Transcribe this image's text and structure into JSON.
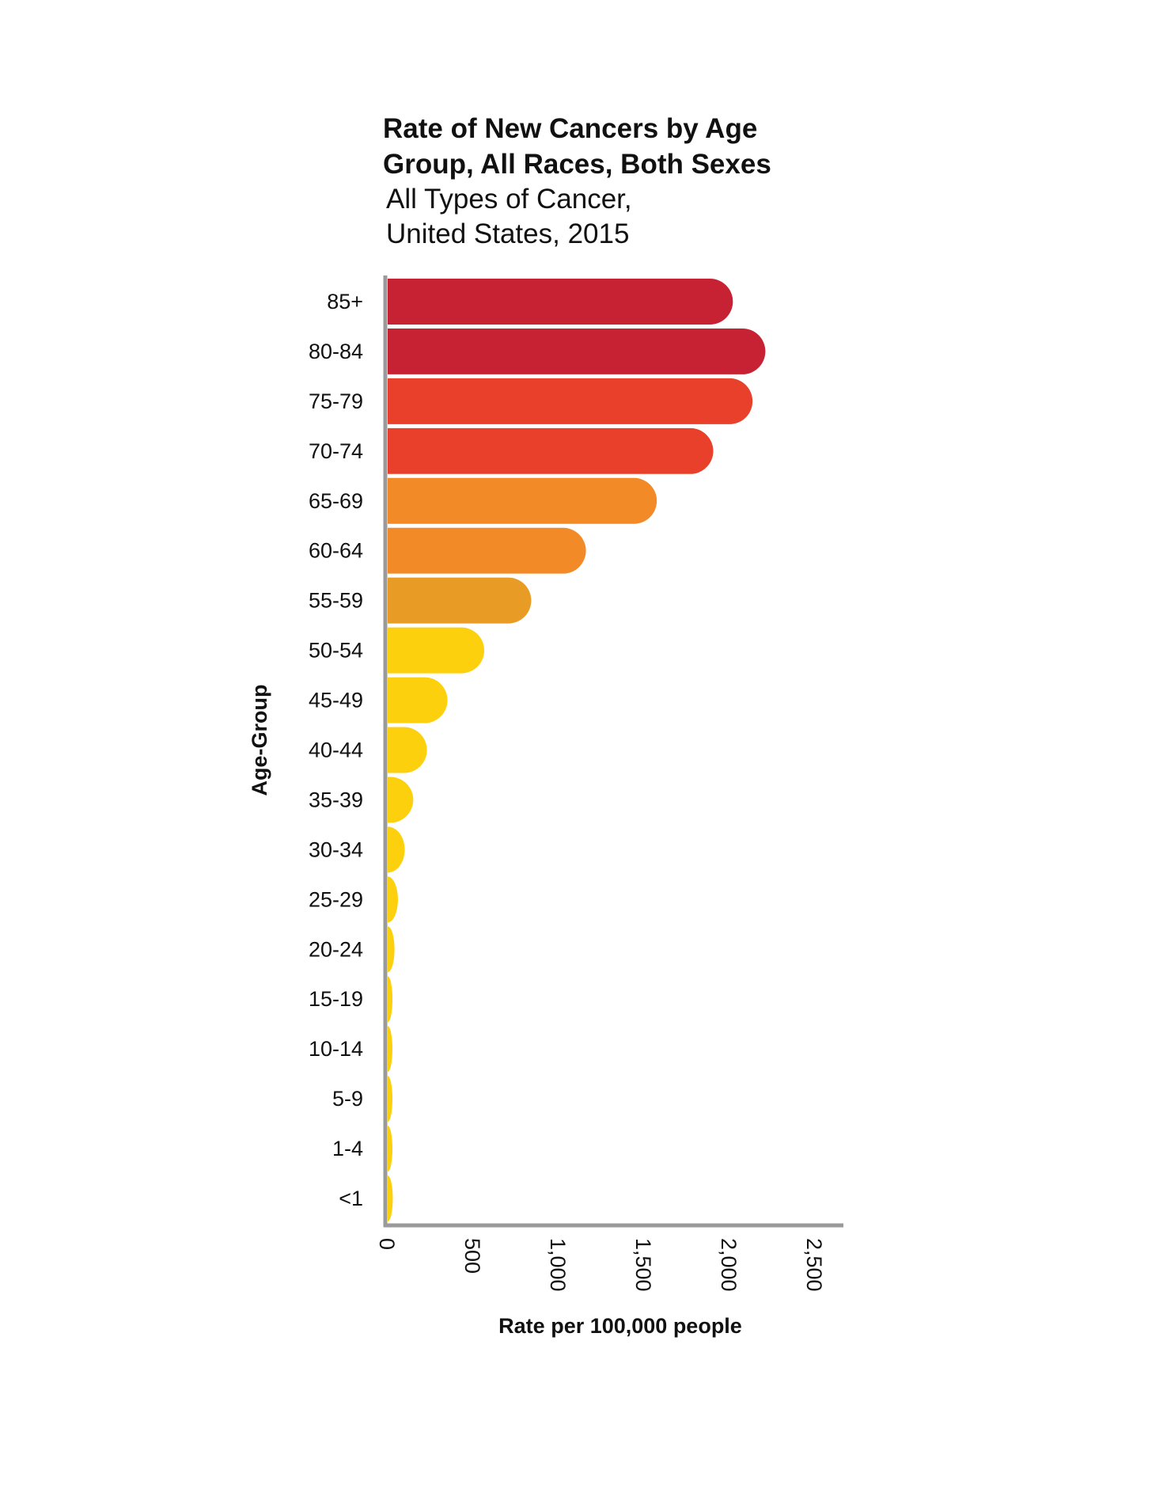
{
  "chart_data": {
    "type": "bar",
    "orientation": "horizontal",
    "title": "Rate of New Cancers by Age Group, All Races, Both Sexes",
    "title_lines": [
      "Rate of New Cancers by Age",
      "Group, All Races, Both Sexes"
    ],
    "subtitle_lines": [
      "All Types of Cancer,",
      "United States, 2015"
    ],
    "xlabel": "Rate per 100,000 people",
    "ylabel": "Age-Group",
    "xlim": [
      0,
      2700
    ],
    "xticks": [
      0,
      500,
      1000,
      1500,
      2000,
      2500
    ],
    "xtick_labels": [
      "0",
      "500",
      "1,000",
      "1,500",
      "2,000",
      "2,500"
    ],
    "grid": false,
    "categories": [
      "85+",
      "80-84",
      "75-79",
      "70-74",
      "65-69",
      "60-64",
      "55-59",
      "50-54",
      "45-49",
      "40-44",
      "35-39",
      "30-34",
      "25-29",
      "20-24",
      "15-19",
      "10-14",
      "5-9",
      "1-4",
      "<1"
    ],
    "values": [
      2020,
      2210,
      2135,
      1905,
      1575,
      1160,
      840,
      565,
      350,
      230,
      150,
      100,
      60,
      40,
      28,
      20,
      20,
      20,
      30
    ],
    "colors": [
      "#c62233",
      "#c62233",
      "#e8402a",
      "#e8402a",
      "#f28a28",
      "#f28a28",
      "#e89b25",
      "#fdd00e",
      "#fdd00e",
      "#fdd00e",
      "#fdd00e",
      "#fdd00e",
      "#fdd00e",
      "#fdd00e",
      "#fdd00e",
      "#fdd00e",
      "#fdd00e",
      "#fdd00e",
      "#fdd00e"
    ],
    "axis_color": "#9a9a9a"
  }
}
